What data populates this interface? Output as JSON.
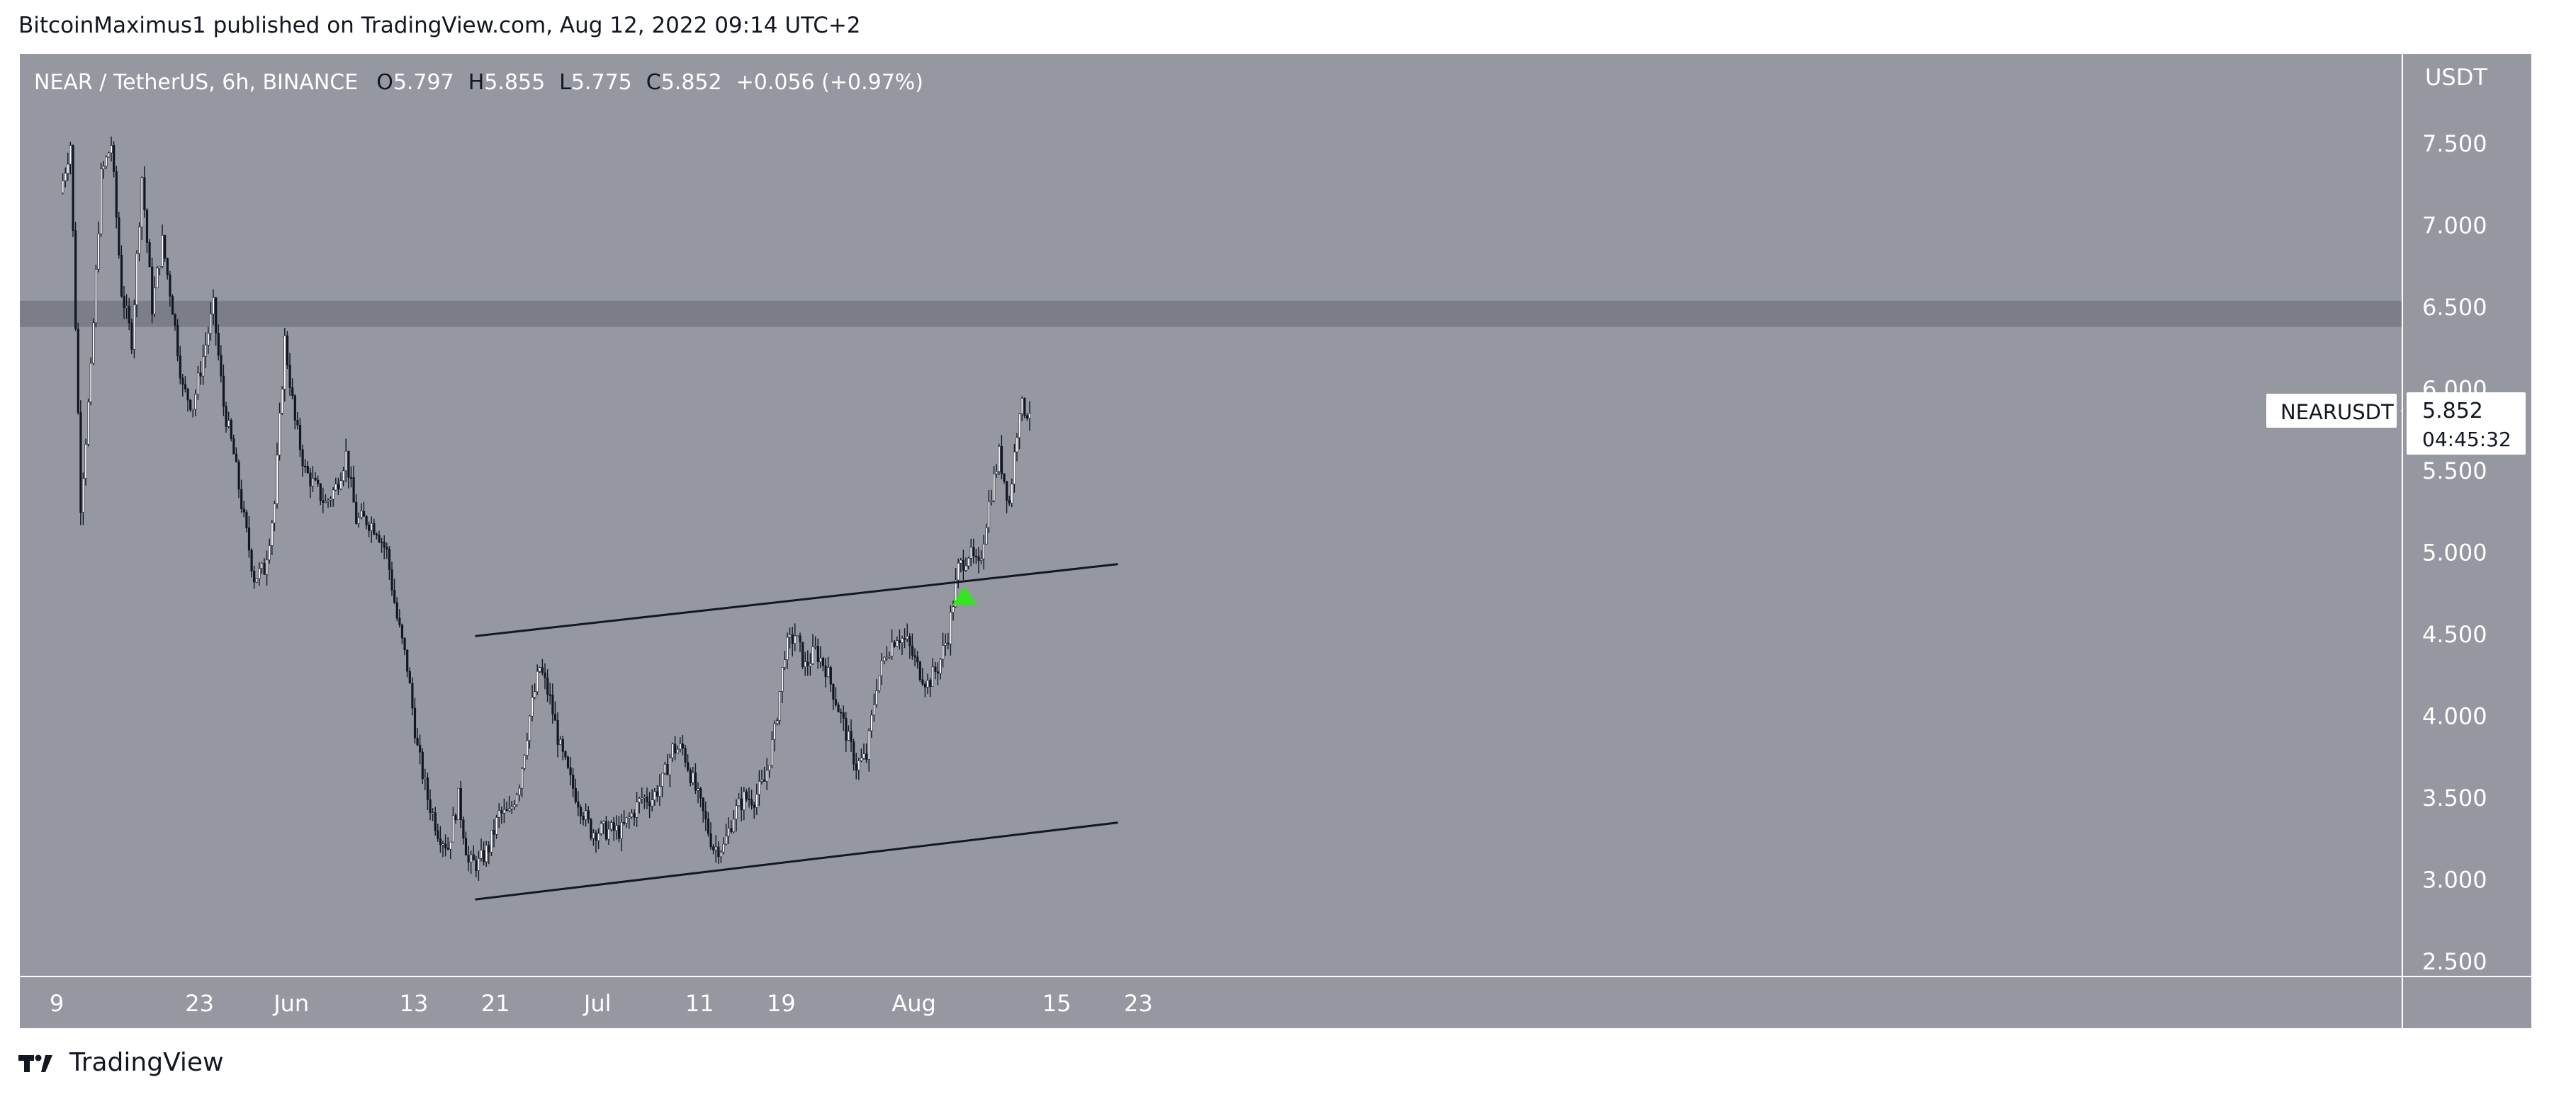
{
  "header": {
    "attribution": "BitcoinMaximus1 published on TradingView.com, Aug 12, 2022 09:14 UTC+2"
  },
  "footer": {
    "brand": "TradingView",
    "logo_icon": "tradingview-logo-icon"
  },
  "legend": {
    "symbol": "NEAR / TetherUS, 6h, BINANCE",
    "o_label": "O",
    "o_value": "5.797",
    "h_label": "H",
    "h_value": "5.855",
    "l_label": "L",
    "l_value": "5.775",
    "c_label": "C",
    "c_value": "5.852",
    "change": "+0.056 (+0.97%)"
  },
  "price_axis": {
    "currency": "USDT"
  },
  "price_label": {
    "symbol": "NEARUSDT",
    "price": "5.852",
    "countdown": "04:45:32"
  },
  "colors": {
    "background": "#9598a1",
    "candle_up": "#ffffff",
    "candle_down": "#131722",
    "resistance_zone": "#787b86",
    "marker": "#33e61f"
  },
  "chart_data": {
    "type": "candlestick",
    "interval": "6h",
    "ylim": [
      2.5,
      7.8
    ],
    "yticks": [
      "7.500",
      "7.000",
      "6.500",
      "6.000",
      "5.500",
      "5.000",
      "4.500",
      "4.000",
      "3.500",
      "3.000",
      "2.500"
    ],
    "xticks": [
      "9",
      "23",
      "Jun",
      "13",
      "21",
      "Jul",
      "11",
      "19",
      "Aug",
      "15",
      "23"
    ],
    "resistance_zone": {
      "low": 6.38,
      "high": 6.54
    },
    "channel": {
      "upper": {
        "from": [
          "2022-06-19",
          4.49
        ],
        "to": [
          "2022-08-21",
          4.93
        ]
      },
      "lower": {
        "from": [
          "2022-06-19",
          2.88
        ],
        "to": [
          "2022-08-21",
          3.35
        ]
      }
    },
    "marker": {
      "type": "arrow-up",
      "date": "2022-08-06",
      "value": 4.73
    },
    "series": [
      {
        "values": [
          {
            "t": "2022-05-10",
            "c": 7.5
          },
          {
            "t": "2022-05-11",
            "c": 5.3
          },
          {
            "t": "2022-05-12",
            "c": 6.1
          },
          {
            "t": "2022-05-13",
            "c": 7.3
          },
          {
            "t": "2022-05-14",
            "c": 7.5
          },
          {
            "t": "2022-05-15",
            "c": 6.6
          },
          {
            "t": "2022-05-16",
            "c": 6.3
          },
          {
            "t": "2022-05-17",
            "c": 7.3
          },
          {
            "t": "2022-05-18",
            "c": 6.5
          },
          {
            "t": "2022-05-19",
            "c": 6.9
          },
          {
            "t": "2022-05-20",
            "c": 6.5
          },
          {
            "t": "2022-05-21",
            "c": 6.0
          },
          {
            "t": "2022-05-22",
            "c": 5.9
          },
          {
            "t": "2022-05-23",
            "c": 6.2
          },
          {
            "t": "2022-05-24",
            "c": 6.5
          },
          {
            "t": "2022-05-25",
            "c": 5.9
          },
          {
            "t": "2022-05-26",
            "c": 5.6
          },
          {
            "t": "2022-05-27",
            "c": 5.2
          },
          {
            "t": "2022-05-28",
            "c": 4.85
          },
          {
            "t": "2022-05-29",
            "c": 4.9
          },
          {
            "t": "2022-05-30",
            "c": 5.3
          },
          {
            "t": "2022-05-31",
            "c": 6.3
          },
          {
            "t": "2022-06-01",
            "c": 5.8
          },
          {
            "t": "2022-06-02",
            "c": 5.5
          },
          {
            "t": "2022-06-03",
            "c": 5.4
          },
          {
            "t": "2022-06-04",
            "c": 5.3
          },
          {
            "t": "2022-06-05",
            "c": 5.4
          },
          {
            "t": "2022-06-06",
            "c": 5.6
          },
          {
            "t": "2022-06-07",
            "c": 5.2
          },
          {
            "t": "2022-06-08",
            "c": 5.2
          },
          {
            "t": "2022-06-09",
            "c": 5.15
          },
          {
            "t": "2022-06-10",
            "c": 5.0
          },
          {
            "t": "2022-06-11",
            "c": 4.6
          },
          {
            "t": "2022-06-12",
            "c": 4.3
          },
          {
            "t": "2022-06-13",
            "c": 3.8
          },
          {
            "t": "2022-06-14",
            "c": 3.5
          },
          {
            "t": "2022-06-15",
            "c": 3.3
          },
          {
            "t": "2022-06-16",
            "c": 3.2
          },
          {
            "t": "2022-06-17",
            "c": 3.5
          },
          {
            "t": "2022-06-18",
            "c": 3.1
          },
          {
            "t": "2022-06-19",
            "c": 3.1
          },
          {
            "t": "2022-06-20",
            "c": 3.2
          },
          {
            "t": "2022-06-21",
            "c": 3.4
          },
          {
            "t": "2022-06-22",
            "c": 3.4
          },
          {
            "t": "2022-06-23",
            "c": 3.6
          },
          {
            "t": "2022-06-24",
            "c": 4.0
          },
          {
            "t": "2022-06-25",
            "c": 4.3
          },
          {
            "t": "2022-06-26",
            "c": 4.1
          },
          {
            "t": "2022-06-27",
            "c": 3.8
          },
          {
            "t": "2022-06-28",
            "c": 3.6
          },
          {
            "t": "2022-06-29",
            "c": 3.45
          },
          {
            "t": "2022-06-30",
            "c": 3.3
          },
          {
            "t": "2022-07-01",
            "c": 3.3
          },
          {
            "t": "2022-07-02",
            "c": 3.3
          },
          {
            "t": "2022-07-03",
            "c": 3.3
          },
          {
            "t": "2022-07-04",
            "c": 3.4
          },
          {
            "t": "2022-07-05",
            "c": 3.5
          },
          {
            "t": "2022-07-06",
            "c": 3.5
          },
          {
            "t": "2022-07-07",
            "c": 3.6
          },
          {
            "t": "2022-07-08",
            "c": 3.8
          },
          {
            "t": "2022-07-09",
            "c": 3.8
          },
          {
            "t": "2022-07-10",
            "c": 3.6
          },
          {
            "t": "2022-07-11",
            "c": 3.4
          },
          {
            "t": "2022-07-12",
            "c": 3.2
          },
          {
            "t": "2022-07-13",
            "c": 3.2
          },
          {
            "t": "2022-07-14",
            "c": 3.4
          },
          {
            "t": "2022-07-15",
            "c": 3.5
          },
          {
            "t": "2022-07-16",
            "c": 3.5
          },
          {
            "t": "2022-07-17",
            "c": 3.6
          },
          {
            "t": "2022-07-18",
            "c": 3.9
          },
          {
            "t": "2022-07-19",
            "c": 4.4
          },
          {
            "t": "2022-07-20",
            "c": 4.5
          },
          {
            "t": "2022-07-21",
            "c": 4.3
          },
          {
            "t": "2022-07-22",
            "c": 4.4
          },
          {
            "t": "2022-07-23",
            "c": 4.3
          },
          {
            "t": "2022-07-24",
            "c": 4.1
          },
          {
            "t": "2022-07-25",
            "c": 3.9
          },
          {
            "t": "2022-07-26",
            "c": 3.7
          },
          {
            "t": "2022-07-27",
            "c": 3.75
          },
          {
            "t": "2022-07-28",
            "c": 4.2
          },
          {
            "t": "2022-07-29",
            "c": 4.4
          },
          {
            "t": "2022-07-30",
            "c": 4.5
          },
          {
            "t": "2022-07-31",
            "c": 4.45
          },
          {
            "t": "2022-08-01",
            "c": 4.3
          },
          {
            "t": "2022-08-02",
            "c": 4.2
          },
          {
            "t": "2022-08-03",
            "c": 4.3
          },
          {
            "t": "2022-08-04",
            "c": 4.5
          },
          {
            "t": "2022-08-05",
            "c": 4.9
          },
          {
            "t": "2022-08-06",
            "c": 5.0
          },
          {
            "t": "2022-08-07",
            "c": 4.9
          },
          {
            "t": "2022-08-08",
            "c": 5.3
          },
          {
            "t": "2022-08-09",
            "c": 5.6
          },
          {
            "t": "2022-08-10",
            "c": 5.3
          },
          {
            "t": "2022-08-11",
            "c": 5.9
          },
          {
            "t": "2022-08-12",
            "c": 5.852
          }
        ]
      }
    ]
  }
}
